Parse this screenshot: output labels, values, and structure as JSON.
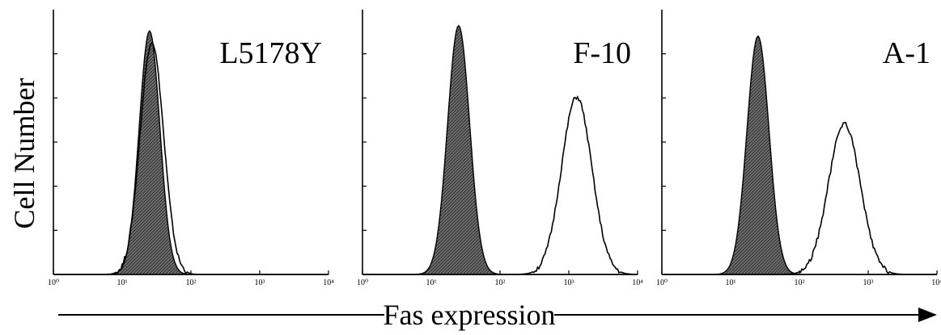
{
  "chart_data": [
    {
      "type": "area",
      "title": "L5178Y",
      "xscale": "log",
      "x_ticks": [
        "10⁰",
        "10¹",
        "10²",
        "10³",
        "10⁴"
      ],
      "xlim": [
        1,
        10000
      ],
      "yticks_count": 6,
      "series": [
        {
          "style": "shaded",
          "peak_x": 25,
          "peak_y": 0.92,
          "width_decades": 0.15
        },
        {
          "style": "open",
          "peak_x": 27,
          "peak_y": 0.88,
          "width_decades": 0.17
        }
      ]
    },
    {
      "type": "area",
      "title": "F-10",
      "xscale": "log",
      "x_ticks": [
        "10⁰",
        "10¹",
        "10²",
        "10³",
        "10⁴"
      ],
      "xlim": [
        1,
        10000
      ],
      "yticks_count": 6,
      "series": [
        {
          "style": "shaded",
          "peak_x": 25,
          "peak_y": 0.94,
          "width_decades": 0.16
        },
        {
          "style": "open",
          "peak_x": 1300,
          "peak_y": 0.67,
          "width_decades": 0.22
        }
      ]
    },
    {
      "type": "area",
      "title": "A-1",
      "xscale": "log",
      "x_ticks": [
        "10⁰",
        "10¹",
        "10²",
        "10³",
        "10⁴"
      ],
      "xlim": [
        1,
        10000
      ],
      "yticks_count": 6,
      "series": [
        {
          "style": "shaded",
          "peak_x": 25,
          "peak_y": 0.9,
          "width_decades": 0.16
        },
        {
          "style": "open",
          "peak_x": 450,
          "peak_y": 0.57,
          "width_decades": 0.23
        }
      ]
    }
  ],
  "ylabel": "Cell Number",
  "xlabel": "Fas expression"
}
